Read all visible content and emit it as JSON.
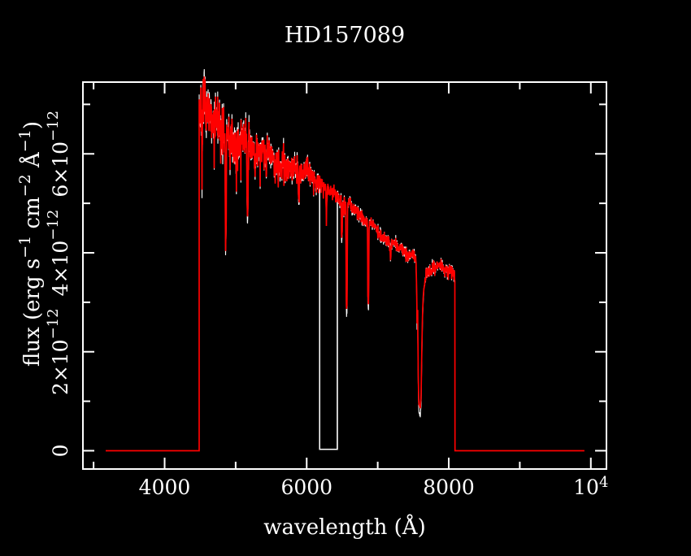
{
  "title": "HD157089",
  "axes": {
    "xlabel": "wavelength (Å)",
    "ylabel_segments": [
      {
        "t": "flux (erg s"
      },
      {
        "sup": "−1"
      },
      {
        "t": " cm"
      },
      {
        "sup": "−2"
      },
      {
        "t": " Å"
      },
      {
        "sup": "−1"
      },
      {
        "t": ")"
      }
    ],
    "xlim": [
      2850,
      10220
    ],
    "ylim_1e12": [
      -0.37,
      7.45
    ],
    "x_major_ticks": [
      {
        "value": 4000,
        "label": [
          {
            "t": "4000"
          }
        ]
      },
      {
        "value": 6000,
        "label": [
          {
            "t": "6000"
          }
        ]
      },
      {
        "value": 8000,
        "label": [
          {
            "t": "8000"
          }
        ]
      },
      {
        "value": 10000,
        "label": [
          {
            "t": "10"
          },
          {
            "sup": "4"
          }
        ]
      }
    ],
    "x_minor_ticks": [
      3000,
      5000,
      7000,
      9000
    ],
    "y_major_ticks": [
      {
        "value": 0,
        "label": [
          {
            "t": "0"
          }
        ]
      },
      {
        "value": 2,
        "label": [
          {
            "t": "2×10"
          },
          {
            "sup": "−12"
          }
        ]
      },
      {
        "value": 4,
        "label": [
          {
            "t": "4×10"
          },
          {
            "sup": "−12"
          }
        ]
      },
      {
        "value": 6,
        "label": [
          {
            "t": "6×10"
          },
          {
            "sup": "−12"
          }
        ]
      }
    ],
    "y_minor_ticks": [
      1,
      3,
      5,
      7
    ]
  },
  "chart_data": {
    "type": "line",
    "title": "HD157089",
    "xlabel": "wavelength (Å)",
    "ylabel": "flux (erg s^-1 cm^-2 Å^-1)",
    "x_unit": "Å",
    "y_unit": "1e-12 erg s^-1 cm^-2 Å^-1",
    "xlim": [
      2850,
      10220
    ],
    "ylim_1e12": [
      -0.37,
      7.45
    ],
    "grid": false,
    "legend": false,
    "series_note": "red = calibrated spectrum, white = raw noisy spectrum underneath",
    "baseline_zero_ranges": [
      [
        3170,
        4487
      ],
      [
        8088,
        9910
      ]
    ],
    "signal_range": [
      4487,
      8088
    ],
    "jump_top_flux_1e12": 7.1,
    "continuum_points_1e12": [
      [
        4487,
        6.75
      ],
      [
        4545,
        6.85
      ],
      [
        4620,
        6.7
      ],
      [
        4700,
        6.62
      ],
      [
        4780,
        6.55
      ],
      [
        4860,
        6.42
      ],
      [
        4940,
        6.35
      ],
      [
        5060,
        6.28
      ],
      [
        5180,
        6.18
      ],
      [
        5320,
        6.08
      ],
      [
        5460,
        6.0
      ],
      [
        5600,
        5.9
      ],
      [
        5750,
        5.78
      ],
      [
        5900,
        5.68
      ],
      [
        6050,
        5.55
      ],
      [
        6183,
        5.45
      ],
      [
        6300,
        5.3
      ],
      [
        6432,
        5.15
      ],
      [
        6563,
        5.0
      ],
      [
        6700,
        4.82
      ],
      [
        6867,
        4.63
      ],
      [
        7000,
        4.45
      ],
      [
        7100,
        4.32
      ],
      [
        7200,
        4.2
      ],
      [
        7300,
        4.1
      ],
      [
        7400,
        4.0
      ],
      [
        7500,
        3.9
      ],
      [
        7560,
        3.84
      ],
      [
        7700,
        3.65
      ],
      [
        7760,
        3.7
      ],
      [
        7860,
        3.72
      ],
      [
        7960,
        3.68
      ],
      [
        8030,
        3.6
      ],
      [
        8060,
        3.52
      ],
      [
        8088,
        3.44
      ]
    ],
    "absorption_lines": [
      {
        "wl": 4530,
        "flux_min": 5.9,
        "hw": 8
      },
      {
        "wl": 4861,
        "flux_min": 4.15,
        "hw": 10
      },
      {
        "wl": 4920,
        "flux_min": 5.8,
        "hw": 8
      },
      {
        "wl": 5167,
        "flux_min": 4.85,
        "hw": 10
      },
      {
        "wl": 5270,
        "flux_min": 5.6,
        "hw": 8
      },
      {
        "wl": 5430,
        "flux_min": 5.55,
        "hw": 8
      },
      {
        "wl": 5890,
        "flux_min": 5.15,
        "hw": 9
      },
      {
        "wl": 6280,
        "flux_min": 4.95,
        "hw": 8
      },
      {
        "wl": 6495,
        "flux_min": 4.45,
        "hw": 8
      },
      {
        "wl": 6563,
        "flux_min": 2.87,
        "hw": 10
      },
      {
        "wl": 6867,
        "flux_min": 2.98,
        "hw": 9
      },
      {
        "wl": 7180,
        "flux_min": 3.95,
        "hw": 11
      }
    ],
    "telluric_a_band_profile_1e12": [
      [
        7539,
        3.8
      ],
      [
        7548,
        3.3
      ],
      [
        7554,
        2.6
      ],
      [
        7562,
        2.9
      ],
      [
        7570,
        1.6
      ],
      [
        7578,
        1.0
      ],
      [
        7588,
        0.9
      ],
      [
        7600,
        0.88
      ],
      [
        7610,
        1.1
      ],
      [
        7618,
        1.8
      ],
      [
        7628,
        2.6
      ],
      [
        7640,
        3.1
      ],
      [
        7652,
        3.3
      ],
      [
        7668,
        3.45
      ],
      [
        7678,
        3.5
      ]
    ],
    "white_gap_range": [
      6183,
      6432
    ],
    "noise": {
      "seed": 7,
      "seed_white": 13,
      "sigma_points_1e12": [
        [
          4487,
          0.32
        ],
        [
          5000,
          0.24
        ],
        [
          5600,
          0.17
        ],
        [
          6100,
          0.115
        ],
        [
          6500,
          0.09
        ],
        [
          7200,
          0.07
        ],
        [
          8088,
          0.08
        ]
      ],
      "white_amp_factor": 1.0,
      "white_extra_jitter": 0.15,
      "white_jitter_red_end_factor": 1.8,
      "red_amp_factor": 0.85,
      "micro_spike_prob_blue": 0.045,
      "micro_spike_prob_red": 0.02,
      "micro_spike_max_1e12": 0.55
    }
  },
  "colors": {
    "background": "#000000",
    "frame": "#ffffff",
    "text": "#ffffff",
    "spectrum_red": "#ff0000",
    "spectrum_white": "#ffffff"
  }
}
